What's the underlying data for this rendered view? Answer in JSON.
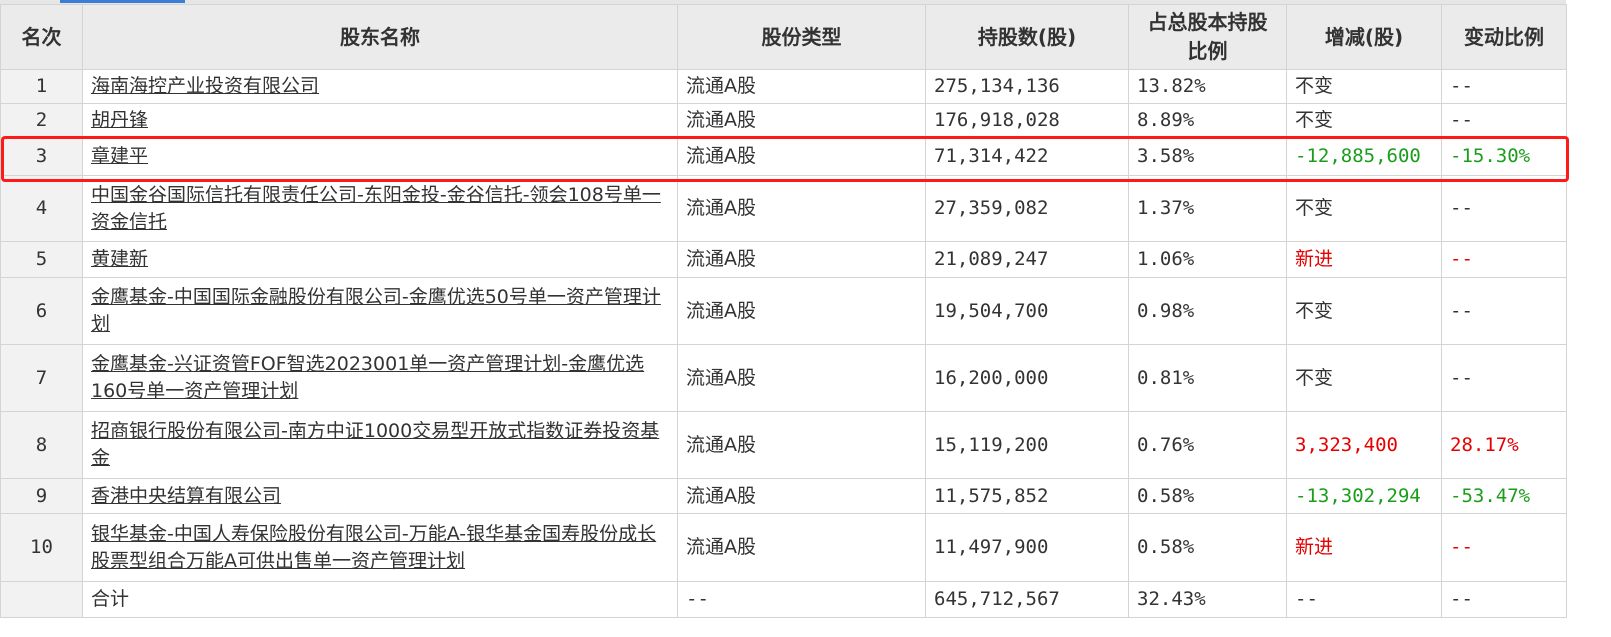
{
  "headers": [
    "名次",
    "股东名称",
    "股份类型",
    "持股数(股)",
    "占总股本持股比例",
    "增减(股)",
    "变动比例"
  ],
  "rows": [
    {
      "rank": "1",
      "name": "海南海控产业投资有限公司",
      "type": "流通A股",
      "shares": "275,134,136",
      "pct": "13.82%",
      "change": "不变",
      "change_pct": "--",
      "status": "none"
    },
    {
      "rank": "2",
      "name": "胡丹锋",
      "type": "流通A股",
      "shares": "176,918,028",
      "pct": "8.89%",
      "change": "不变",
      "change_pct": "--",
      "status": "none"
    },
    {
      "rank": "3",
      "name": "章建平",
      "type": "流通A股",
      "shares": "71,314,422",
      "pct": "3.58%",
      "change": "-12,885,600",
      "change_pct": "-15.30%",
      "status": "decrease"
    },
    {
      "rank": "4",
      "name": "中国金谷国际信托有限责任公司-东阳金投-金谷信托-领会108号单一资金信托",
      "type": "流通A股",
      "shares": "27,359,082",
      "pct": "1.37%",
      "change": "不变",
      "change_pct": "--",
      "status": "none"
    },
    {
      "rank": "5",
      "name": "黄建新",
      "type": "流通A股",
      "shares": "21,089,247",
      "pct": "1.06%",
      "change": "新进",
      "change_pct": "--",
      "status": "new"
    },
    {
      "rank": "6",
      "name": "金鹰基金-中国国际金融股份有限公司-金鹰优选50号单一资产管理计划",
      "type": "流通A股",
      "shares": "19,504,700",
      "pct": "0.98%",
      "change": "不变",
      "change_pct": "--",
      "status": "none"
    },
    {
      "rank": "7",
      "name": "金鹰基金-兴证资管FOF智选2023001单一资产管理计划-金鹰优选160号单一资产管理计划",
      "type": "流通A股",
      "shares": "16,200,000",
      "pct": "0.81%",
      "change": "不变",
      "change_pct": "--",
      "status": "none"
    },
    {
      "rank": "8",
      "name": "招商银行股份有限公司-南方中证1000交易型开放式指数证券投资基金",
      "type": "流通A股",
      "shares": "15,119,200",
      "pct": "0.76%",
      "change": "3,323,400",
      "change_pct": "28.17%",
      "status": "increase"
    },
    {
      "rank": "9",
      "name": "香港中央结算有限公司",
      "type": "流通A股",
      "shares": "11,575,852",
      "pct": "0.58%",
      "change": "-13,302,294",
      "change_pct": "-53.47%",
      "status": "decrease"
    },
    {
      "rank": "10",
      "name": "银华基金-中国人寿保险股份有限公司-万能A-银华基金国寿股份成长股票型组合万能A可供出售单一资产管理计划",
      "type": "流通A股",
      "shares": "11,497,900",
      "pct": "0.58%",
      "change": "新进",
      "change_pct": "--",
      "status": "new"
    }
  ],
  "total": {
    "label": "合计",
    "type": "--",
    "shares": "645,712,567",
    "pct": "32.43%",
    "change": "--",
    "change_pct": "--"
  },
  "highlighted_rank": "3",
  "colors": {
    "increase": "#e60000",
    "decrease": "#1a9e1a",
    "highlight_border": "#ff1a1a",
    "header_bg": "#ebebeb"
  }
}
